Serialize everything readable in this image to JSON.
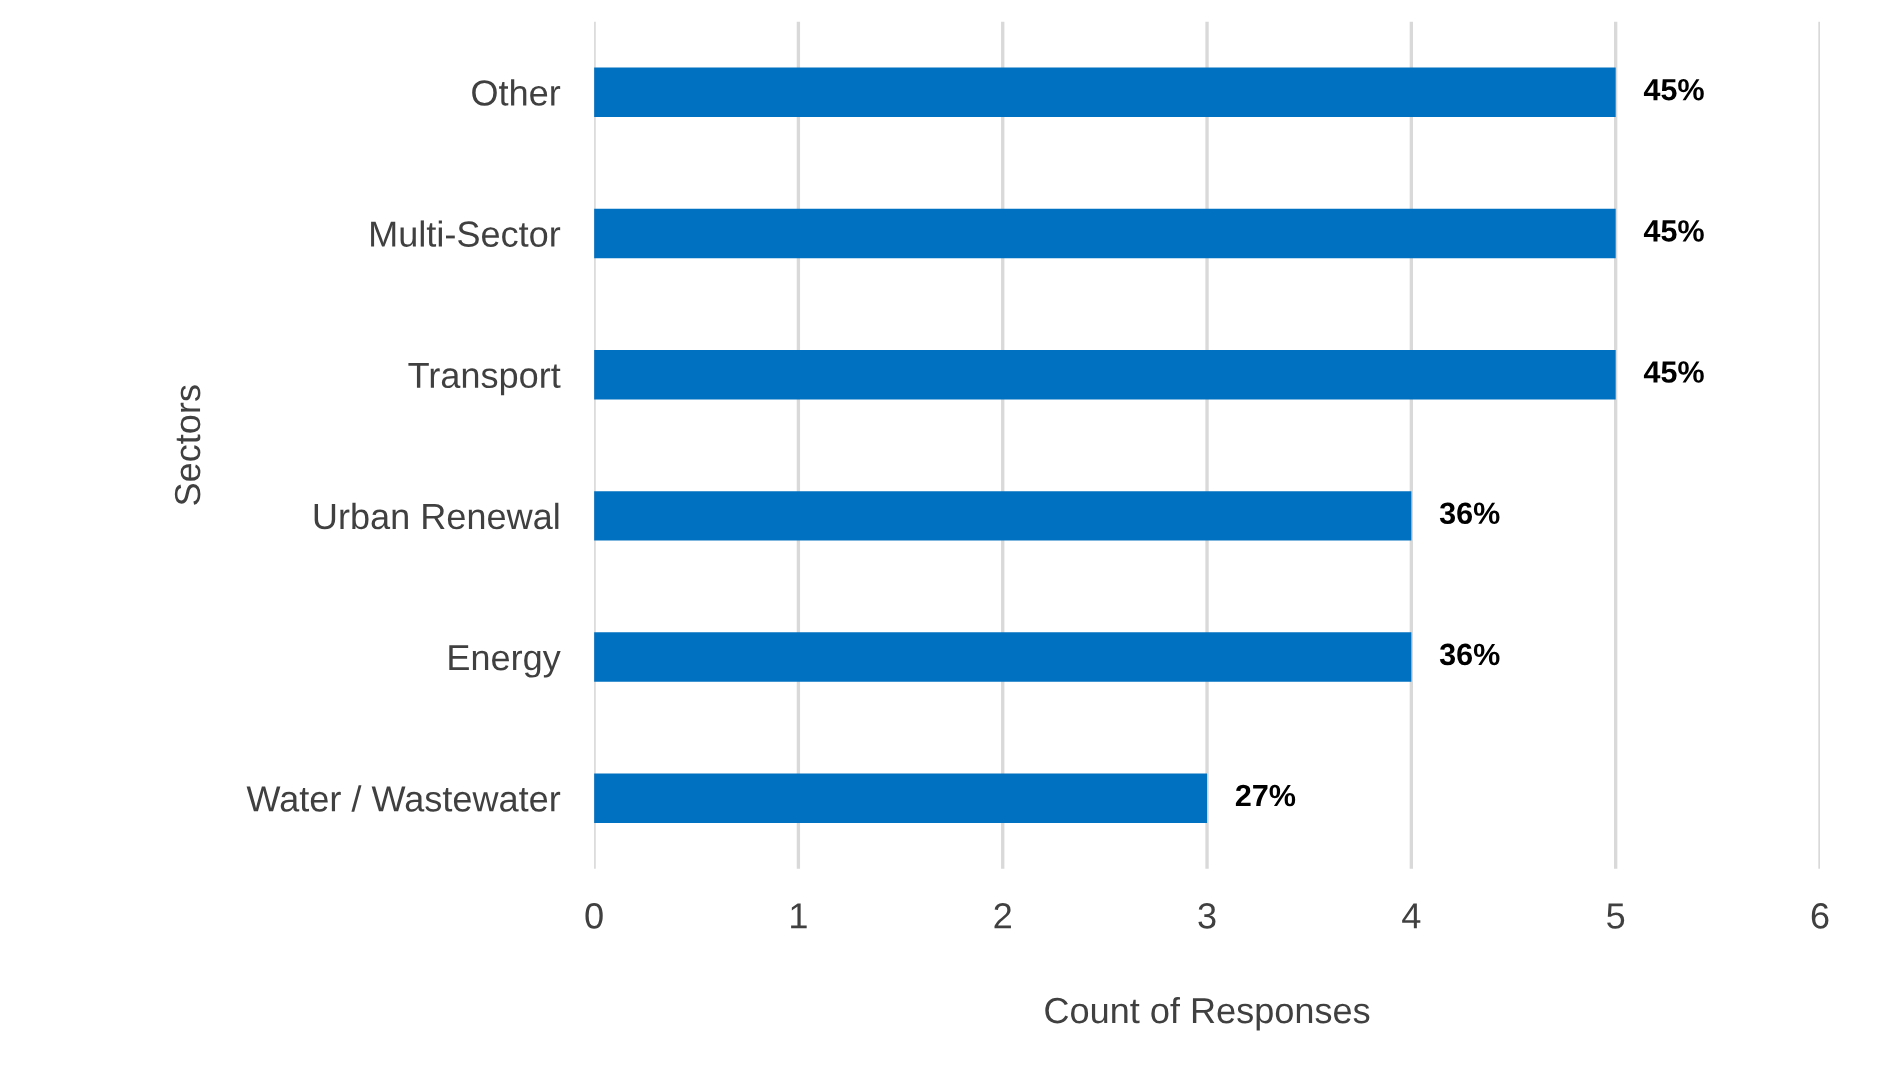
{
  "chart_data": {
    "type": "bar",
    "orientation": "horizontal",
    "xlabel": "Count of Responses",
    "ylabel": "Sectors",
    "categories": [
      "Other",
      "Multi-Sector",
      "Transport",
      "Urban Renewal",
      "Energy",
      "Water / Wastewater"
    ],
    "values": [
      5,
      5,
      5,
      4,
      4,
      3
    ],
    "color": "#0070c0",
    "annotations": [
      {
        "text": "45%",
        "x": 5,
        "y": "Other"
      },
      {
        "text": "45%",
        "x": 5,
        "y": "Multi-Sector"
      },
      {
        "text": "45%",
        "x": 5,
        "y": "Transport"
      },
      {
        "text": "36%",
        "x": 4,
        "y": "Urban Renewal"
      },
      {
        "text": "36%",
        "x": 4,
        "y": "Energy"
      },
      {
        "text": "27%",
        "x": 3,
        "y": "Water / Wastewater"
      }
    ],
    "xlim": [
      0,
      6
    ],
    "xticks": [
      0,
      1,
      2,
      3,
      4,
      5,
      6
    ],
    "grid": "x",
    "legend": false
  }
}
